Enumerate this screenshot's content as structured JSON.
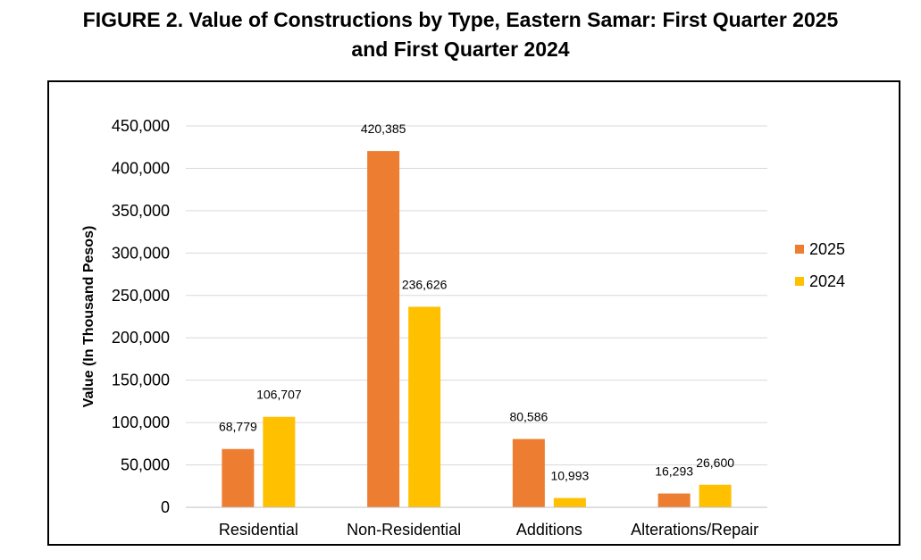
{
  "title": {
    "line1": "FIGURE 2. Value of Constructions by Type, Eastern Samar: First Quarter 2025",
    "line2": "and First Quarter 2024"
  },
  "chart_data": {
    "type": "bar",
    "title": "FIGURE 2. Value of Constructions by Type, Eastern Samar: First Quarter 2025 and First Quarter 2024",
    "xlabel": "",
    "ylabel": "Value (In Thousand Pesos)",
    "ylim": [
      0,
      450000
    ],
    "yticks": [
      0,
      50000,
      100000,
      150000,
      200000,
      250000,
      300000,
      350000,
      400000,
      450000
    ],
    "ytick_labels": [
      "0",
      "50,000",
      "100,000",
      "150,000",
      "200,000",
      "250,000",
      "300,000",
      "350,000",
      "400,000",
      "450,000"
    ],
    "grid": true,
    "legend_position": "right",
    "categories": [
      "Residential",
      "Non-Residential",
      "Additions",
      "Alterations/Repair"
    ],
    "series": [
      {
        "name": "2025",
        "color": "#ED7D31",
        "values": [
          68779,
          420385,
          80586,
          16293
        ],
        "labels": [
          "68,779",
          "420,385",
          "80,586",
          "16,293"
        ]
      },
      {
        "name": "2024",
        "color": "#FFC000",
        "values": [
          106707,
          236626,
          10993,
          26600
        ],
        "labels": [
          "106,707",
          "236,626",
          "10,993",
          "26,600"
        ]
      }
    ]
  }
}
